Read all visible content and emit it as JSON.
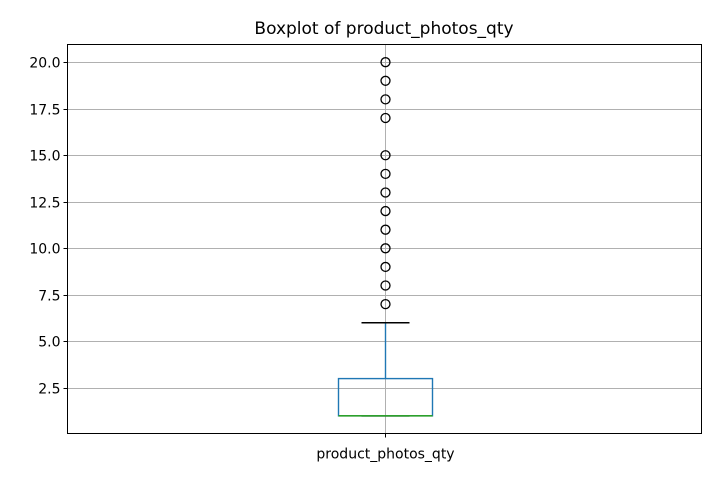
{
  "chart_data": {
    "type": "boxplot",
    "title": "Boxplot of product_photos_qty",
    "categories": [
      "product_photos_qty"
    ],
    "boxes": [
      {
        "name": "product_photos_qty",
        "min_whisker": 1,
        "q1": 1,
        "median": 1,
        "q3": 3,
        "max_whisker": 6,
        "fliers": [
          7,
          8,
          9,
          10,
          11,
          12,
          13,
          14,
          15,
          17,
          18,
          19,
          20
        ]
      }
    ],
    "yticks": [
      2.5,
      5.0,
      7.5,
      10.0,
      12.5,
      15.0,
      17.5,
      20.0
    ],
    "ytick_labels": [
      "2.5",
      "5.0",
      "7.5",
      "10.0",
      "12.5",
      "15.0",
      "17.5",
      "20.0"
    ],
    "ylim": [
      0.05,
      20.95
    ],
    "grid": true,
    "colors": {
      "box": "#1f77b4",
      "whisker": "#1f77b4",
      "median": "#2ca02c",
      "cap": "#000000",
      "flier": "#000000",
      "grid": "#b0b0b0"
    }
  }
}
